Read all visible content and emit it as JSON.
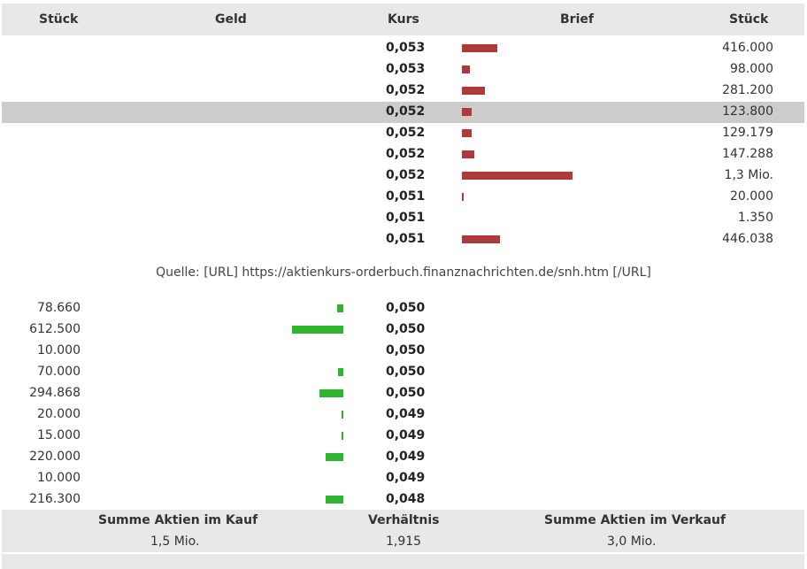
{
  "header": {
    "stueck_left": "Stück",
    "geld": "Geld",
    "kurs": "Kurs",
    "brief": "Brief",
    "stueck_right": "Stück"
  },
  "asks": [
    {
      "kurs": "0,053",
      "stueck": "416.000",
      "bar_fraction": 0.32
    },
    {
      "kurs": "0,053",
      "stueck": "98.000",
      "bar_fraction": 0.07
    },
    {
      "kurs": "0,052",
      "stueck": "281.200",
      "bar_fraction": 0.21
    },
    {
      "kurs": "0,052",
      "stueck": "123.800",
      "bar_fraction": 0.09,
      "highlight": true
    },
    {
      "kurs": "0,052",
      "stueck": "129.179",
      "bar_fraction": 0.09
    },
    {
      "kurs": "0,052",
      "stueck": "147.288",
      "bar_fraction": 0.11
    },
    {
      "kurs": "0,052",
      "stueck": "1,3 Mio.",
      "bar_fraction": 1.0
    },
    {
      "kurs": "0,051",
      "stueck": "20.000",
      "bar_fraction": 0.015
    },
    {
      "kurs": "0,051",
      "stueck": "1.350",
      "bar_fraction": 0
    },
    {
      "kurs": "0,051",
      "stueck": "446.038",
      "bar_fraction": 0.34
    }
  ],
  "source": "Quelle: [URL] https://aktienkurs-orderbuch.finanznachrichten.de/snh.htm [/URL]",
  "bids": [
    {
      "stueck": "78.660",
      "kurs": "0,050",
      "bar_fraction": 0.12
    },
    {
      "stueck": "612.500",
      "kurs": "0,050",
      "bar_fraction": 1.0
    },
    {
      "stueck": "10.000",
      "kurs": "0,050",
      "bar_fraction": 0
    },
    {
      "stueck": "70.000",
      "kurs": "0,050",
      "bar_fraction": 0.1
    },
    {
      "stueck": "294.868",
      "kurs": "0,050",
      "bar_fraction": 0.47
    },
    {
      "stueck": "20.000",
      "kurs": "0,049",
      "bar_fraction": 0.03
    },
    {
      "stueck": "15.000",
      "kurs": "0,049",
      "bar_fraction": 0.03
    },
    {
      "stueck": "220.000",
      "kurs": "0,049",
      "bar_fraction": 0.35
    },
    {
      "stueck": "10.000",
      "kurs": "0,049",
      "bar_fraction": 0
    },
    {
      "stueck": "216.300",
      "kurs": "0,048",
      "bar_fraction": 0.35
    }
  ],
  "footer": {
    "kauf_label": "Summe Aktien im Kauf",
    "kauf_value": "1,5 Mio.",
    "ratio_label": "Verhältnis",
    "ratio_value": "1,915",
    "verkauf_label": "Summe Aktien im Verkauf",
    "verkauf_value": "3,0 Mio."
  },
  "colors": {
    "ask_bar": "#b03a3a",
    "bid_bar": "#2db52d",
    "header_bg": "#e8e8e8",
    "highlight_bg": "#cccccc"
  }
}
